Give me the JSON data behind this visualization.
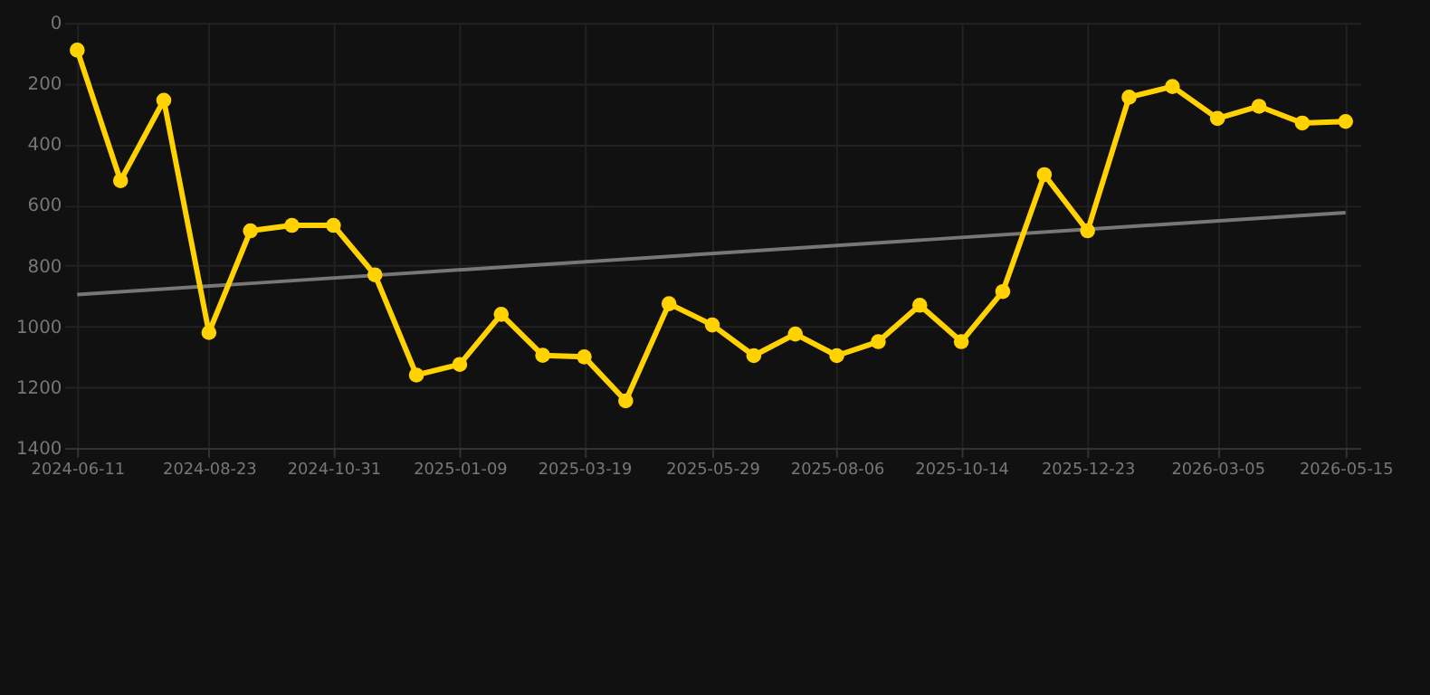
{
  "chart_data": {
    "type": "line",
    "x": [
      "2024-06-11",
      "2024-07-05",
      "2024-07-29",
      "2024-08-23",
      "2024-09-15",
      "2024-10-08",
      "2024-10-31",
      "2024-11-23",
      "2024-12-16",
      "2025-01-09",
      "2025-02-01",
      "2025-02-24",
      "2025-03-19",
      "2025-04-11",
      "2025-05-05",
      "2025-05-29",
      "2025-06-21",
      "2025-07-14",
      "2025-08-06",
      "2025-08-29",
      "2025-09-21",
      "2025-10-14",
      "2025-11-06",
      "2025-11-29",
      "2025-12-23",
      "2026-01-15",
      "2026-02-08",
      "2026-03-05",
      "2026-03-28",
      "2026-04-21",
      "2026-05-15"
    ],
    "series": [
      {
        "color": "#ffd200",
        "marker": "circle",
        "values": [
          90,
          520,
          255,
          1020,
          685,
          667,
          667,
          830,
          1160,
          1125,
          960,
          1095,
          1100,
          1245,
          925,
          995,
          1096,
          1025,
          1096,
          1050,
          930,
          1050,
          885,
          500,
          685,
          245,
          210,
          315,
          275,
          330,
          325
        ]
      },
      {
        "type": "line",
        "color": "#777777",
        "marker": "none",
        "x": [
          "2024-06-11",
          "2026-05-15"
        ],
        "values": [
          895,
          625
        ]
      }
    ],
    "ylim": [
      1400,
      0
    ],
    "yticks": [
      0,
      200,
      400,
      600,
      800,
      1000,
      1200,
      1400
    ],
    "xlim": [
      "2024-06-04",
      "2026-05-23"
    ],
    "xticks": [
      "2024-06-11",
      "2024-08-23",
      "2024-10-31",
      "2025-01-09",
      "2025-03-19",
      "2025-05-29",
      "2025-08-06",
      "2025-10-14",
      "2025-12-23",
      "2026-03-05",
      "2026-05-15"
    ],
    "grid": true
  }
}
